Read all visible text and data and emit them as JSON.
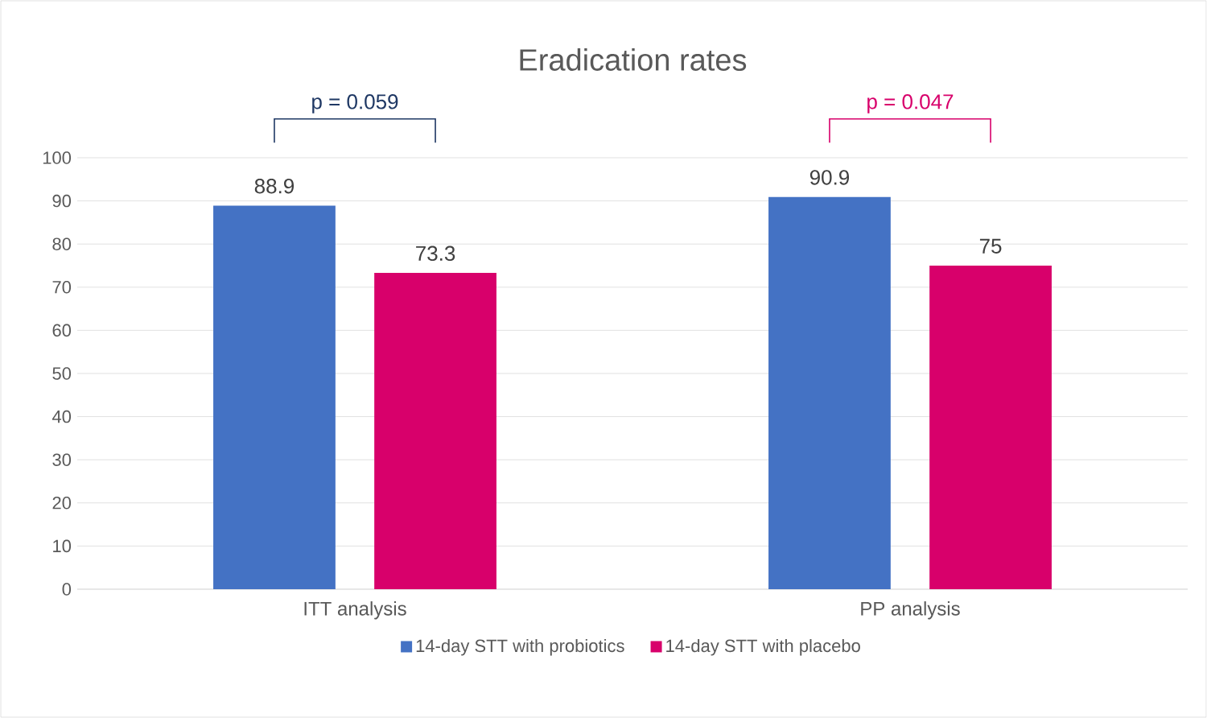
{
  "chart_data": {
    "type": "bar",
    "title": "Eradication rates",
    "categories": [
      "ITT analysis",
      "PP analysis"
    ],
    "series": [
      {
        "name": "14-day STT with probiotics",
        "color": "#4472c4",
        "values": [
          88.9,
          90.9
        ]
      },
      {
        "name": "14-day STT with placebo",
        "color": "#d8006b",
        "values": [
          73.3,
          75
        ]
      }
    ],
    "ylim": [
      0,
      100
    ],
    "yticks": [
      0,
      10,
      20,
      30,
      40,
      50,
      60,
      70,
      80,
      90,
      100
    ],
    "grid": "y",
    "legend": "bottom",
    "data_labels": true,
    "annotations": [
      "p = 0.059",
      "p = 0.047"
    ]
  }
}
